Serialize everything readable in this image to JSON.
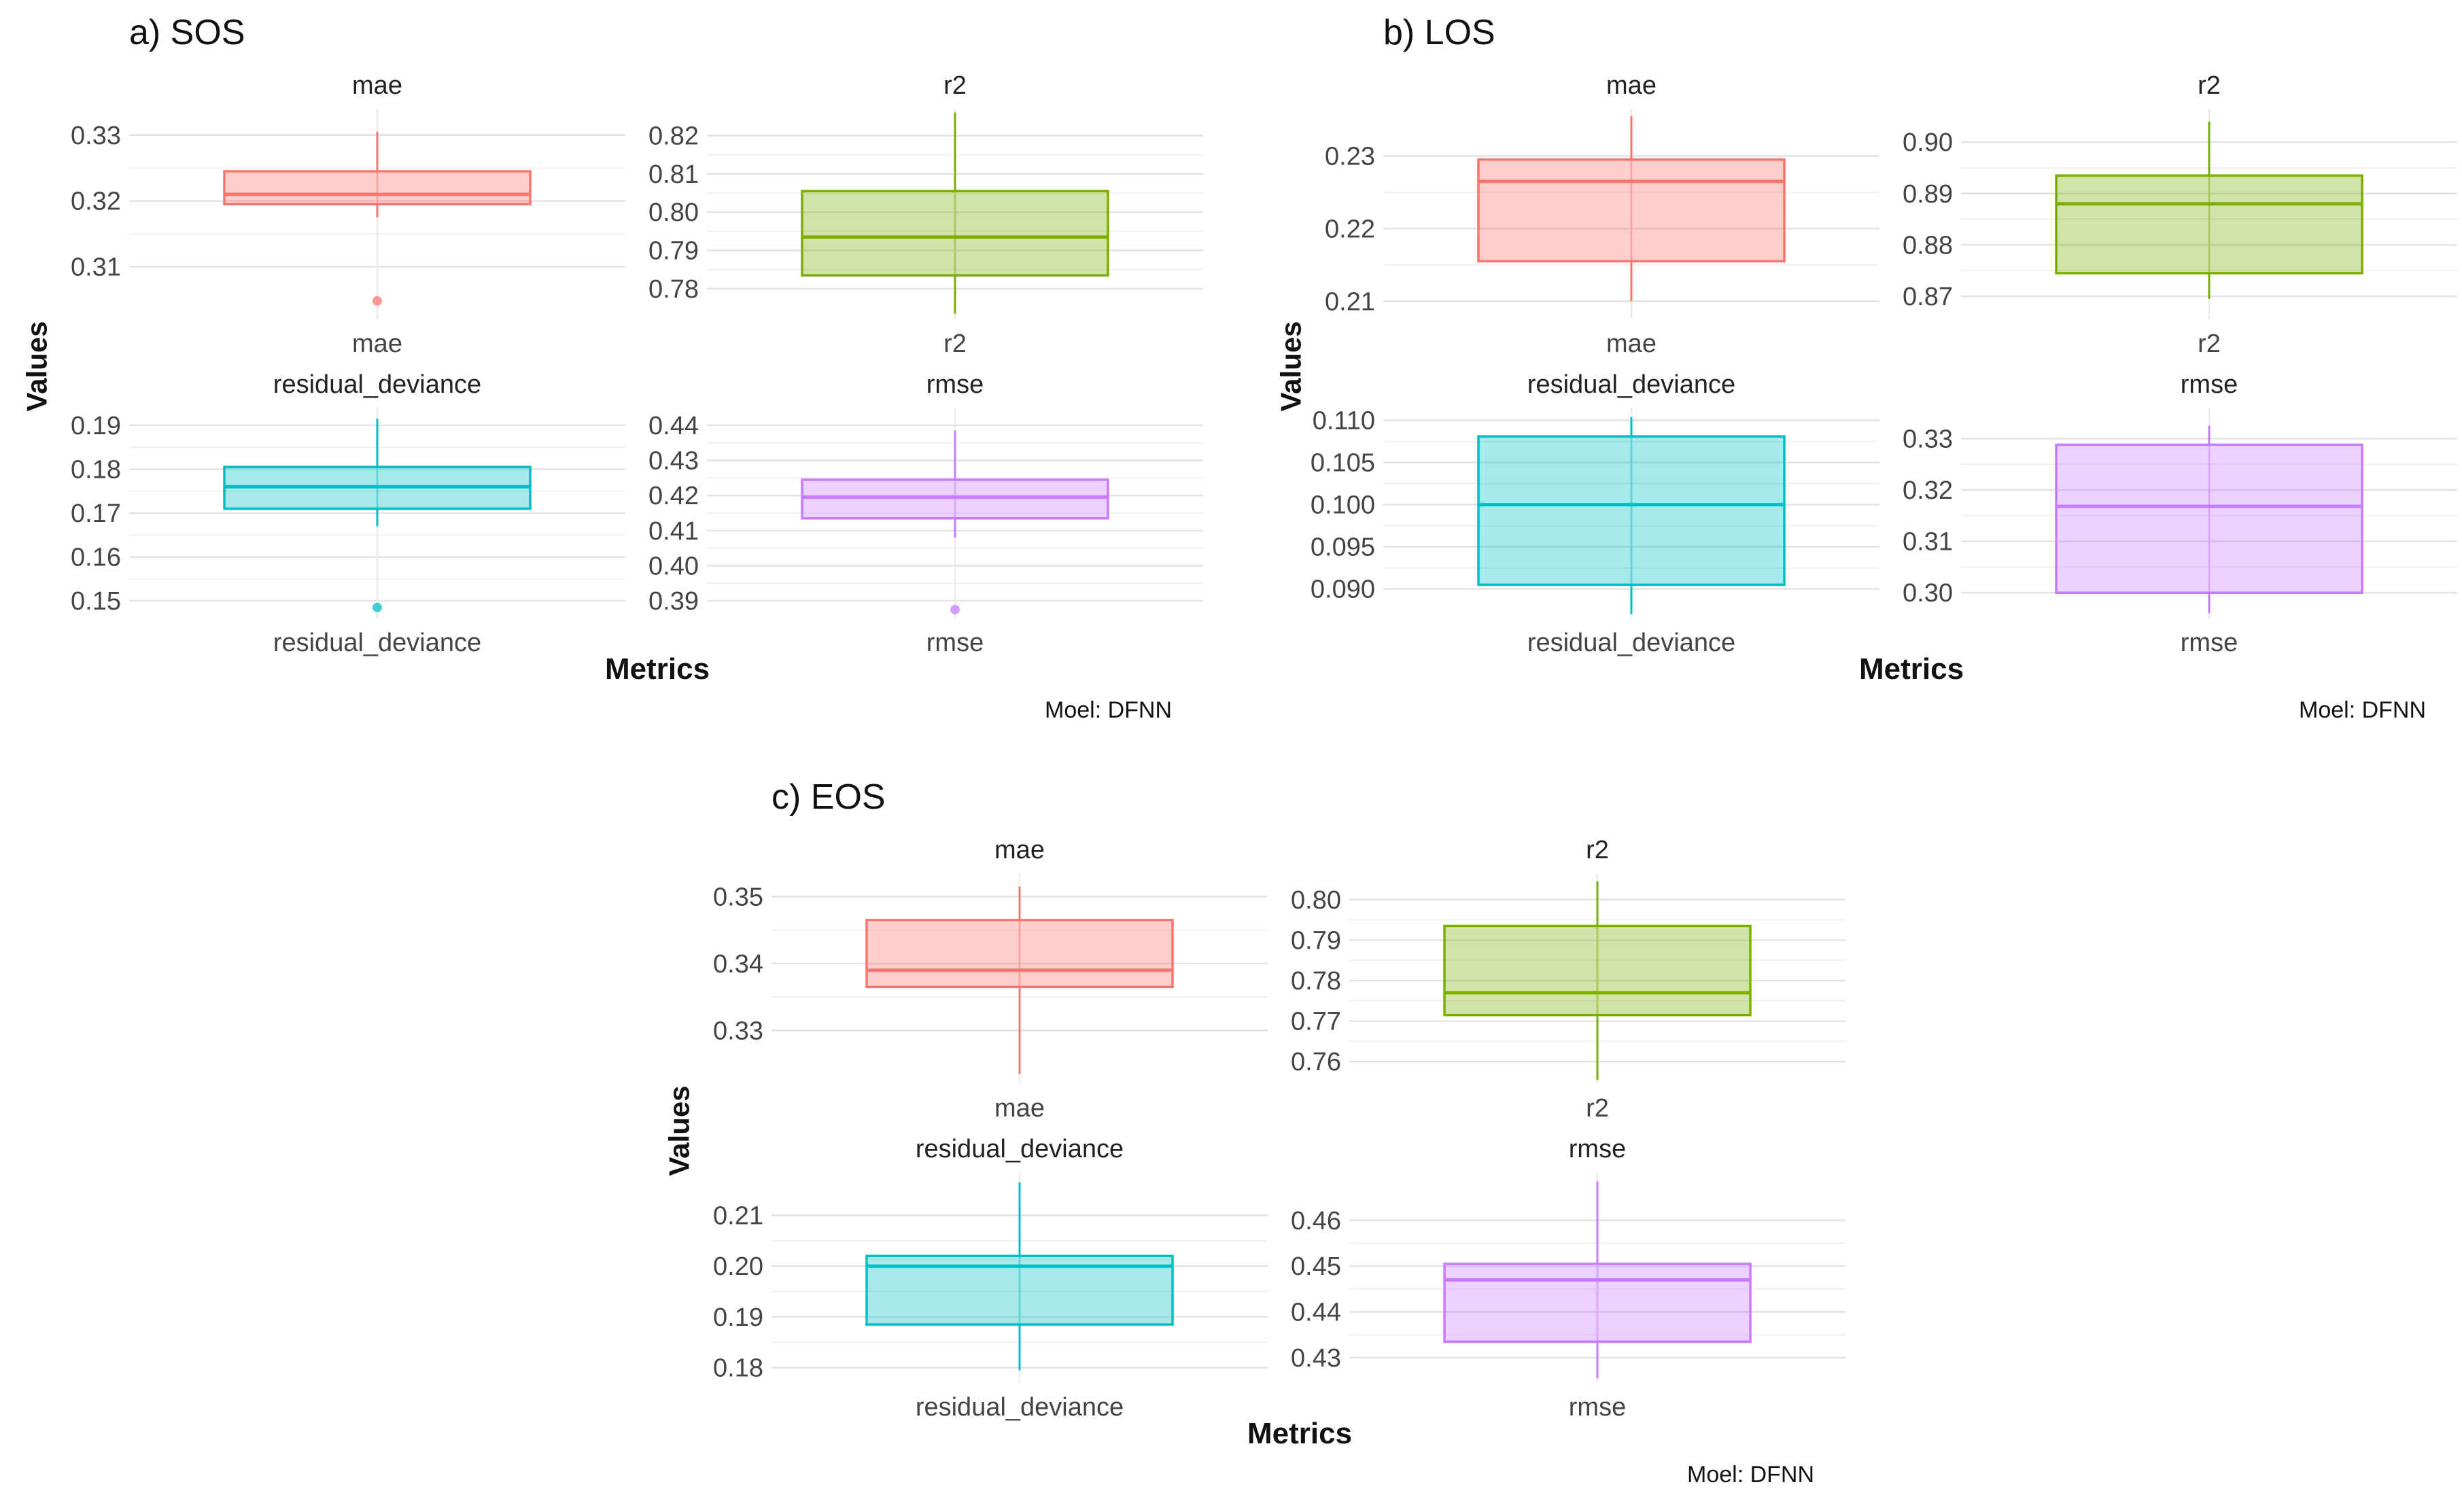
{
  "chart_data": [
    {
      "type": "box",
      "title": "a) SOS",
      "ylabel": "Values",
      "xlabel": "Metrics",
      "caption": "Moel: DFNN",
      "facets": [
        {
          "name": "mae",
          "category": "mae",
          "color": "#F8766D",
          "ylim": [
            0.302,
            0.334
          ],
          "ticks": [
            0.31,
            0.32,
            0.33
          ],
          "tick_labels": [
            "0.31",
            "0.32",
            "0.33"
          ],
          "box": {
            "lower_whisker": 0.3175,
            "q1": 0.3195,
            "median": 0.321,
            "q3": 0.3245,
            "upper_whisker": 0.3305
          },
          "outliers": [
            0.3048
          ]
        },
        {
          "name": "r2",
          "category": "r2",
          "color": "#7CAE00",
          "ylim": [
            0.772,
            0.827
          ],
          "ticks": [
            0.78,
            0.79,
            0.8,
            0.81,
            0.82
          ],
          "tick_labels": [
            "0.78",
            "0.79",
            "0.80",
            "0.81",
            "0.82"
          ],
          "box": {
            "lower_whisker": 0.7735,
            "q1": 0.7835,
            "median": 0.7935,
            "q3": 0.8055,
            "upper_whisker": 0.826
          },
          "outliers": []
        },
        {
          "name": "residual_deviance",
          "category": "residual_deviance",
          "color": "#00BFC4",
          "ylim": [
            0.146,
            0.194
          ],
          "ticks": [
            0.15,
            0.16,
            0.17,
            0.18,
            0.19
          ],
          "tick_labels": [
            "0.15",
            "0.16",
            "0.17",
            "0.18",
            "0.19"
          ],
          "box": {
            "lower_whisker": 0.167,
            "q1": 0.171,
            "median": 0.176,
            "q3": 0.1805,
            "upper_whisker": 0.1915
          },
          "outliers": [
            0.1485
          ]
        },
        {
          "name": "rmse",
          "category": "rmse",
          "color": "#C77CFF",
          "ylim": [
            0.385,
            0.445
          ],
          "ticks": [
            0.39,
            0.4,
            0.41,
            0.42,
            0.43,
            0.44
          ],
          "tick_labels": [
            "0.39",
            "0.40",
            "0.41",
            "0.42",
            "0.43",
            "0.44"
          ],
          "box": {
            "lower_whisker": 0.408,
            "q1": 0.4135,
            "median": 0.4195,
            "q3": 0.4245,
            "upper_whisker": 0.4385
          },
          "outliers": [
            0.3875
          ]
        }
      ]
    },
    {
      "type": "box",
      "title": "b) LOS",
      "ylabel": "Values",
      "xlabel": "Metrics",
      "caption": "Moel: DFNN",
      "facets": [
        {
          "name": "mae",
          "category": "mae",
          "color": "#F8766D",
          "ylim": [
            0.2075,
            0.2365
          ],
          "ticks": [
            0.21,
            0.22,
            0.23
          ],
          "tick_labels": [
            "0.21",
            "0.22",
            "0.23"
          ],
          "box": {
            "lower_whisker": 0.21,
            "q1": 0.2155,
            "median": 0.2265,
            "q3": 0.2295,
            "upper_whisker": 0.2355
          },
          "outliers": []
        },
        {
          "name": "r2",
          "category": "r2",
          "color": "#7CAE00",
          "ylim": [
            0.8655,
            0.9065
          ],
          "ticks": [
            0.87,
            0.88,
            0.89,
            0.9
          ],
          "tick_labels": [
            "0.87",
            "0.88",
            "0.89",
            "0.90"
          ],
          "box": {
            "lower_whisker": 0.8695,
            "q1": 0.8745,
            "median": 0.888,
            "q3": 0.8935,
            "upper_whisker": 0.904
          },
          "outliers": []
        },
        {
          "name": "residual_deviance",
          "category": "residual_deviance",
          "color": "#00BFC4",
          "ylim": [
            0.0865,
            0.1115
          ],
          "ticks": [
            0.09,
            0.095,
            0.1,
            0.105,
            0.11
          ],
          "tick_labels": [
            "0.090",
            "0.095",
            "0.100",
            "0.105",
            "0.110"
          ],
          "box": {
            "lower_whisker": 0.087,
            "q1": 0.0905,
            "median": 0.1,
            "q3": 0.1081,
            "upper_whisker": 0.1104
          },
          "outliers": []
        },
        {
          "name": "rmse",
          "category": "rmse",
          "color": "#C77CFF",
          "ylim": [
            0.295,
            0.336
          ],
          "ticks": [
            0.3,
            0.31,
            0.32,
            0.33
          ],
          "tick_labels": [
            "0.30",
            "0.31",
            "0.32",
            "0.33"
          ],
          "box": {
            "lower_whisker": 0.296,
            "q1": 0.3,
            "median": 0.3168,
            "q3": 0.3288,
            "upper_whisker": 0.3325
          },
          "outliers": []
        }
      ]
    },
    {
      "type": "box",
      "title": "c) EOS",
      "ylabel": "Values",
      "xlabel": "Metrics",
      "caption": "Moel: DFNN",
      "facets": [
        {
          "name": "mae",
          "category": "mae",
          "color": "#F8766D",
          "ylim": [
            0.322,
            0.3535
          ],
          "ticks": [
            0.33,
            0.34,
            0.35
          ],
          "tick_labels": [
            "0.33",
            "0.34",
            "0.35"
          ],
          "box": {
            "lower_whisker": 0.3235,
            "q1": 0.3365,
            "median": 0.339,
            "q3": 0.3465,
            "upper_whisker": 0.3515
          },
          "outliers": []
        },
        {
          "name": "r2",
          "category": "r2",
          "color": "#7CAE00",
          "ylim": [
            0.7545,
            0.8065
          ],
          "ticks": [
            0.76,
            0.77,
            0.78,
            0.79,
            0.8
          ],
          "tick_labels": [
            "0.76",
            "0.77",
            "0.78",
            "0.79",
            "0.80"
          ],
          "box": {
            "lower_whisker": 0.7555,
            "q1": 0.7715,
            "median": 0.777,
            "q3": 0.7935,
            "upper_whisker": 0.8045
          },
          "outliers": []
        },
        {
          "name": "residual_deviance",
          "category": "residual_deviance",
          "color": "#00BFC4",
          "ylim": [
            0.177,
            0.2185
          ],
          "ticks": [
            0.18,
            0.19,
            0.2,
            0.21
          ],
          "tick_labels": [
            "0.18",
            "0.19",
            "0.20",
            "0.21"
          ],
          "box": {
            "lower_whisker": 0.1795,
            "q1": 0.1885,
            "median": 0.2,
            "q3": 0.202,
            "upper_whisker": 0.2165
          },
          "outliers": []
        },
        {
          "name": "rmse",
          "category": "rmse",
          "color": "#C77CFF",
          "ylim": [
            0.4245,
            0.4705
          ],
          "ticks": [
            0.43,
            0.44,
            0.45,
            0.46
          ],
          "tick_labels": [
            "0.43",
            "0.44",
            "0.45",
            "0.46"
          ],
          "box": {
            "lower_whisker": 0.4255,
            "q1": 0.4335,
            "median": 0.447,
            "q3": 0.4505,
            "upper_whisker": 0.4685
          },
          "outliers": []
        }
      ]
    }
  ]
}
